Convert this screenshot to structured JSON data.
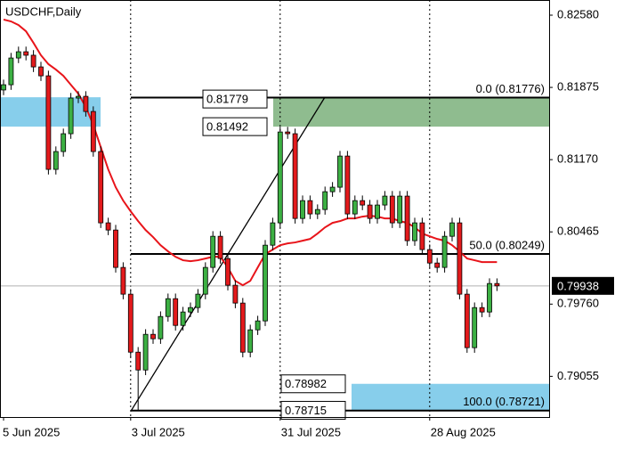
{
  "chart_data": {
    "type": "candlestick",
    "title": "USDCHF,Daily",
    "categories": [
      "5 Jun 2025",
      null,
      null,
      null,
      null,
      null,
      null,
      null,
      null,
      null,
      null,
      null,
      null,
      null,
      null,
      null,
      null,
      "3 Jul 2025",
      null,
      null,
      null,
      null,
      null,
      null,
      null,
      null,
      null,
      null,
      null,
      null,
      null,
      null,
      null,
      null,
      null,
      null,
      null,
      "31 Jul 2025",
      null,
      null,
      null,
      null,
      null,
      null,
      null,
      null,
      null,
      null,
      null,
      null,
      null,
      null,
      null,
      null,
      null,
      null,
      null,
      "28 Aug 2025",
      null,
      null,
      null,
      null,
      null,
      null,
      null,
      null,
      null
    ],
    "open": [
      0.8185,
      0.81901,
      0.82162,
      0.82223,
      0.82189,
      0.82075,
      0.81988,
      0.81075,
      0.81249,
      0.81423,
      0.81771,
      0.81788,
      0.8164,
      0.81249,
      0.80553,
      0.80483,
      0.80118,
      0.79857,
      0.79291,
      0.79117,
      0.79465,
      0.79422,
      0.79639,
      0.79813,
      0.79552,
      0.79683,
      0.79726,
      0.79857,
      0.80118,
      0.80422,
      0.80205,
      0.79944,
      0.7977,
      0.79291,
      0.79509,
      0.79596,
      0.80335,
      0.80553,
      0.8144,
      0.81423,
      0.80596,
      0.8077,
      0.8064,
      0.80683,
      0.80857,
      0.80901,
      0.81205,
      0.8064,
      0.8077,
      0.80727,
      0.80596,
      0.80727,
      0.80814,
      0.80553,
      0.80814,
      0.80379,
      0.80553,
      0.80292,
      0.80161,
      0.80118,
      0.80422,
      0.80553,
      0.79857,
      0.79335,
      0.79726,
      0.79683,
      0.79961
    ],
    "high": [
      0.81951,
      0.82212,
      0.82273,
      0.82273,
      0.82239,
      0.82125,
      0.82038,
      0.81299,
      0.81473,
      0.81821,
      0.81838,
      0.81838,
      0.8169,
      0.81299,
      0.80603,
      0.80533,
      0.80168,
      0.79907,
      0.79341,
      0.79515,
      0.79515,
      0.79689,
      0.79863,
      0.79863,
      0.79733,
      0.79776,
      0.79907,
      0.80168,
      0.80472,
      0.80472,
      0.80255,
      0.79994,
      0.7982,
      0.79559,
      0.79646,
      0.80385,
      0.80603,
      0.81492,
      0.8149,
      0.81473,
      0.8082,
      0.8082,
      0.80733,
      0.80907,
      0.80951,
      0.81255,
      0.81255,
      0.8082,
      0.8082,
      0.80777,
      0.80777,
      0.80864,
      0.80864,
      0.80864,
      0.80864,
      0.80603,
      0.80603,
      0.80342,
      0.80211,
      0.80472,
      0.80603,
      0.80603,
      0.79907,
      0.79776,
      0.79776,
      0.80011,
      0.80011
    ],
    "low": [
      0.818,
      0.81851,
      0.82112,
      0.82139,
      0.82025,
      0.81938,
      0.81025,
      0.81025,
      0.81199,
      0.81373,
      0.81721,
      0.8159,
      0.81199,
      0.80503,
      0.80433,
      0.80068,
      0.79807,
      0.79241,
      0.78715,
      0.79067,
      0.79372,
      0.79372,
      0.79589,
      0.79502,
      0.79502,
      0.79633,
      0.79676,
      0.79807,
      0.80068,
      0.80155,
      0.79894,
      0.7972,
      0.79241,
      0.79241,
      0.79459,
      0.79546,
      0.80285,
      0.80503,
      0.81373,
      0.80546,
      0.80546,
      0.8059,
      0.8059,
      0.80633,
      0.80807,
      0.80851,
      0.8059,
      0.8059,
      0.80677,
      0.80546,
      0.80546,
      0.80677,
      0.80503,
      0.80503,
      0.80329,
      0.80329,
      0.80242,
      0.80111,
      0.80068,
      0.80068,
      0.80372,
      0.79807,
      0.79285,
      0.79285,
      0.79633,
      0.79633,
      0.79888
    ],
    "close": [
      0.81901,
      0.82162,
      0.82223,
      0.82189,
      0.82075,
      0.81988,
      0.81075,
      0.81249,
      0.81423,
      0.81771,
      0.81788,
      0.8164,
      0.81249,
      0.80553,
      0.80483,
      0.80118,
      0.79857,
      0.79291,
      0.79117,
      0.79465,
      0.79422,
      0.79639,
      0.79813,
      0.79552,
      0.79683,
      0.79726,
      0.79857,
      0.80118,
      0.80422,
      0.80205,
      0.79944,
      0.7977,
      0.79291,
      0.79509,
      0.79596,
      0.80335,
      0.80553,
      0.8144,
      0.81423,
      0.80596,
      0.8077,
      0.8064,
      0.80683,
      0.80857,
      0.80901,
      0.81205,
      0.8064,
      0.8077,
      0.80727,
      0.80596,
      0.80727,
      0.80814,
      0.80553,
      0.80814,
      0.80379,
      0.80553,
      0.80292,
      0.80161,
      0.80118,
      0.80422,
      0.80553,
      0.79857,
      0.79335,
      0.79726,
      0.79683,
      0.79961,
      0.79938
    ],
    "up_color": "#3cb043",
    "down_color": "#e31a1c",
    "ma": {
      "color": "#e8141a",
      "values": [
        0.82537,
        0.82519,
        0.82484,
        0.82423,
        0.8231,
        0.82189,
        0.82102,
        0.82049,
        0.81988,
        0.81901,
        0.81814,
        0.81684,
        0.8151,
        0.81292,
        0.81075,
        0.80901,
        0.8077,
        0.80666,
        0.8057,
        0.80483,
        0.80414,
        0.80335,
        0.80275,
        0.80222,
        0.80188,
        0.80179,
        0.80188,
        0.80205,
        0.80222,
        0.80222,
        0.80118,
        0.79987,
        0.79944,
        0.79987,
        0.80118,
        0.80248,
        0.80292,
        0.80335,
        0.80353,
        0.80362,
        0.80379,
        0.80396,
        0.80449,
        0.80509,
        0.80553,
        0.8057,
        0.80596,
        0.80596,
        0.80614,
        0.80623,
        0.80614,
        0.80596,
        0.80596,
        0.8057,
        0.80553,
        0.80509,
        0.80449,
        0.80422,
        0.80396,
        0.80379,
        0.80335,
        0.80275,
        0.80205,
        0.80188,
        0.8017,
        0.8017,
        0.8017
      ]
    },
    "ylim": [
      0.78658,
      0.82728
    ],
    "yticks": [
      0.79055,
      {
        "value": 0.7976,
        "label": "0.79760"
      },
      0.80465,
      {
        "value": 0.8117,
        "label": "0.81170"
      },
      {
        "value": 0.81875,
        "label": "0.81875"
      },
      {
        "value": 0.8258,
        "label": "0.82580"
      }
    ],
    "current_price": 0.79938,
    "price_labels": [
      0.81779,
      0.81492,
      0.78982,
      0.78715
    ],
    "fibonacci": [
      {
        "value": 0.81776,
        "label": "0.0 (0.81776)"
      },
      {
        "value": 0.80249,
        "label": "50.0 (0.80249)"
      },
      {
        "value": 0.78721,
        "label": "100.0 (0.78721)"
      }
    ],
    "zone_colors": {
      "green": "#8fbc8f",
      "blue": "#87ceeb"
    }
  }
}
